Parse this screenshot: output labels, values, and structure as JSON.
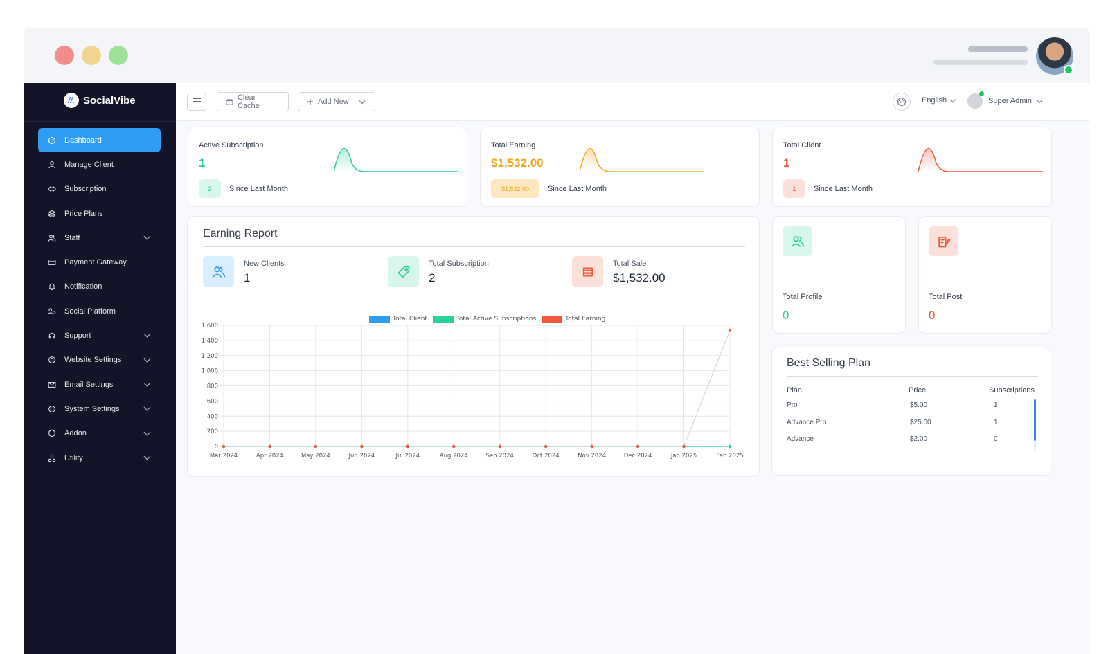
{
  "brand": {
    "name": "SocialVibe",
    "logo_text": "//."
  },
  "sidebar": {
    "items": [
      {
        "label": "Dashboard",
        "icon": "dashboard-icon",
        "active": true,
        "has_children": false
      },
      {
        "label": "Manage Client",
        "icon": "user-icon",
        "has_children": false
      },
      {
        "label": "Subscription",
        "icon": "handshake-icon",
        "has_children": false
      },
      {
        "label": "Price Plans",
        "icon": "layers-icon",
        "has_children": false
      },
      {
        "label": "Staff",
        "icon": "users-icon",
        "has_children": true
      },
      {
        "label": "Payment Gateway",
        "icon": "card-icon",
        "has_children": false
      },
      {
        "label": "Notification",
        "icon": "bell-icon",
        "has_children": false
      },
      {
        "label": "Social Platform",
        "icon": "social-icon",
        "has_children": false
      },
      {
        "label": "Support",
        "icon": "headset-icon",
        "has_children": true
      },
      {
        "label": "Website Settings",
        "icon": "gear-icon",
        "has_children": true
      },
      {
        "label": "Email Settings",
        "icon": "mail-icon",
        "has_children": true
      },
      {
        "label": "System Settings",
        "icon": "gear-icon",
        "has_children": true
      },
      {
        "label": "Addon",
        "icon": "addon-icon",
        "has_children": true
      },
      {
        "label": "Utility",
        "icon": "utility-icon",
        "has_children": true
      }
    ]
  },
  "topbar": {
    "clear_cache": "Clear Cache",
    "add_new": "Add New",
    "language": "English",
    "user": "Super Admin"
  },
  "stats": [
    {
      "title": "Active Subscription",
      "value": "1",
      "badge": "2",
      "since": "Since Last Month",
      "color": "#2ccf9b",
      "badge_bg": "#d8f7ec"
    },
    {
      "title": "Total Earning",
      "value": "$1,532.00",
      "badge": "$1,532.00",
      "since": "Since Last Month",
      "color": "#f5a623",
      "badge_bg": "#fde8c2"
    },
    {
      "title": "Total Client",
      "value": "1",
      "badge": "1",
      "since": "Since Last Month",
      "color": "#f05a3a",
      "badge_bg": "#fde0da"
    }
  ],
  "earning_report": {
    "title": "Earning Report",
    "metrics": [
      {
        "label": "New Clients",
        "value": "1",
        "icon": "users-icon",
        "bg": "#d9efff",
        "color": "#2f9cf4"
      },
      {
        "label": "Total Subscription",
        "value": "2",
        "icon": "tag-icon",
        "bg": "#d8f7ec",
        "color": "#2ccf9b"
      },
      {
        "label": "Total Sale",
        "value": "$1,532.00",
        "icon": "coins-icon",
        "bg": "#fde0da",
        "color": "#f05a3a"
      }
    ]
  },
  "chart_data": {
    "type": "line",
    "categories": [
      "Mar 2024",
      "Apr 2024",
      "May 2024",
      "Jun 2024",
      "Jul 2024",
      "Aug 2024",
      "Sep 2024",
      "Oct 2024",
      "Nov 2024",
      "Dec 2024",
      "Jan 2025",
      "Feb 2025"
    ],
    "series": [
      {
        "name": "Total Client",
        "color": "#2f9cf4",
        "values": [
          0,
          0,
          0,
          0,
          0,
          0,
          0,
          0,
          0,
          0,
          0,
          1
        ]
      },
      {
        "name": "Total Active Subscriptions",
        "color": "#2ccf9b",
        "values": [
          0,
          0,
          0,
          0,
          0,
          0,
          0,
          0,
          0,
          0,
          0,
          1
        ]
      },
      {
        "name": "Total Earning",
        "color": "#f05a3a",
        "values": [
          0,
          0,
          0,
          0,
          0,
          0,
          0,
          0,
          0,
          0,
          0,
          1532
        ]
      }
    ],
    "y_ticks": [
      "0",
      "200",
      "400",
      "600",
      "800",
      "1,000",
      "1,200",
      "1,400",
      "1,600"
    ],
    "ylim": [
      0,
      1600
    ],
    "grid": true,
    "legend": "top"
  },
  "mini_cards": [
    {
      "label": "Total Profile",
      "value": "0",
      "icon": "users-icon",
      "bg": "#d8f7ec",
      "color": "#2ccf9b"
    },
    {
      "label": "Total Post",
      "value": "0",
      "icon": "edit-icon",
      "bg": "#fde0da",
      "color": "#f05a3a"
    }
  ],
  "best_selling": {
    "title": "Best Selling Plan",
    "headers": [
      "Plan",
      "Price",
      "Subscriptions"
    ],
    "rows": [
      {
        "plan": "Pro",
        "price": "$5.00",
        "subs": "1"
      },
      {
        "plan": "Advance Pro",
        "price": "$25.00",
        "subs": "1"
      },
      {
        "plan": "Advance",
        "price": "$2.00",
        "subs": "0"
      }
    ]
  }
}
